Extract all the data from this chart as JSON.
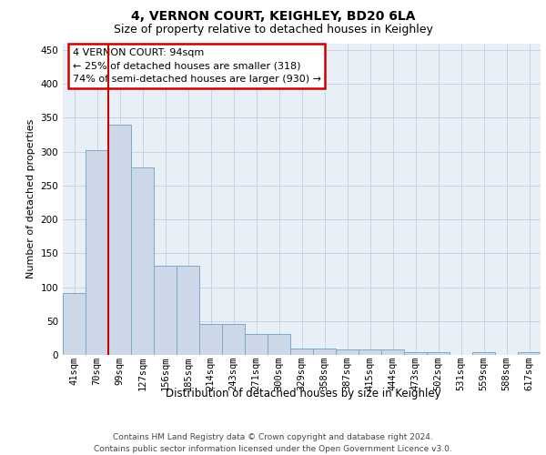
{
  "title": "4, VERNON COURT, KEIGHLEY, BD20 6LA",
  "subtitle": "Size of property relative to detached houses in Keighley",
  "xlabel": "Distribution of detached houses by size in Keighley",
  "ylabel": "Number of detached properties",
  "categories": [
    "41sqm",
    "70sqm",
    "99sqm",
    "127sqm",
    "156sqm",
    "185sqm",
    "214sqm",
    "243sqm",
    "271sqm",
    "300sqm",
    "329sqm",
    "358sqm",
    "387sqm",
    "415sqm",
    "444sqm",
    "473sqm",
    "502sqm",
    "531sqm",
    "559sqm",
    "588sqm",
    "617sqm"
  ],
  "values": [
    91,
    302,
    340,
    277,
    131,
    131,
    46,
    46,
    31,
    31,
    10,
    10,
    8,
    8,
    8,
    4,
    4,
    0,
    4,
    0,
    4
  ],
  "bar_fill": "#ccd8e8",
  "bar_edge": "#7aaac8",
  "annotation_line1": "4 VERNON COURT: 94sqm",
  "annotation_line2": "← 25% of detached houses are smaller (318)",
  "annotation_line3": "74% of semi-detached houses are larger (930) →",
  "vline_color": "#cc0000",
  "vline_x": 1.5,
  "ylim_max": 460,
  "yticks": [
    0,
    50,
    100,
    150,
    200,
    250,
    300,
    350,
    400,
    450
  ],
  "bg_color": "#e8eff7",
  "footer": "Contains HM Land Registry data © Crown copyright and database right 2024.\nContains public sector information licensed under the Open Government Licence v3.0.",
  "title_fontsize": 10,
  "subtitle_fontsize": 9,
  "annot_fontsize": 8,
  "ylabel_fontsize": 8,
  "xlabel_fontsize": 8.5,
  "tick_fontsize": 7.5,
  "footer_fontsize": 6.5
}
